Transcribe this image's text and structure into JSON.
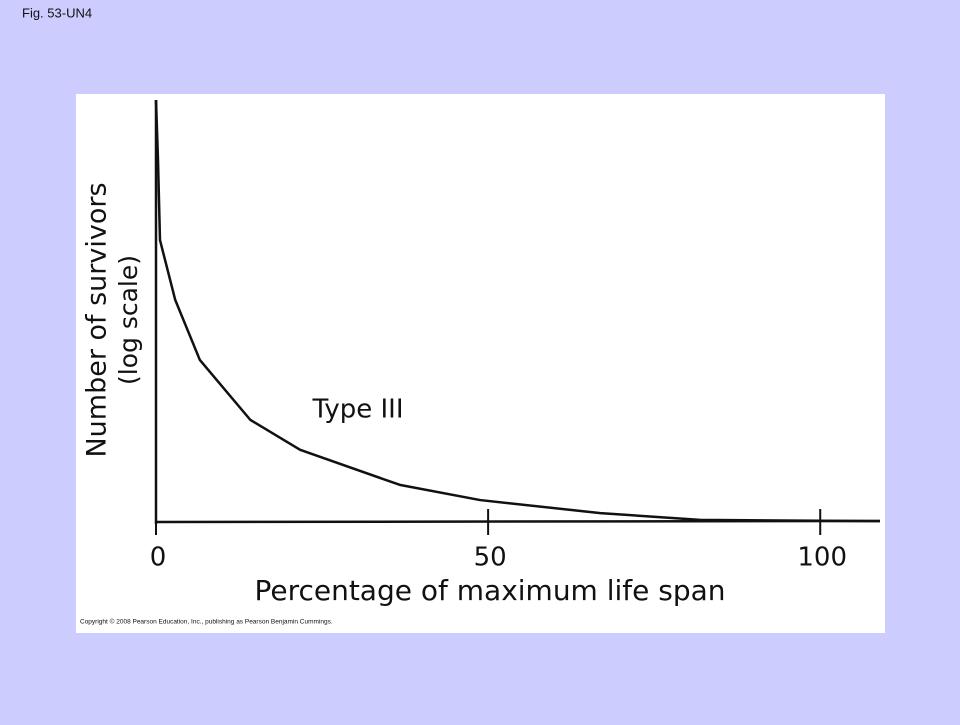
{
  "chart_data": {
    "type": "line",
    "title": "Fig. 53-UN4",
    "xlabel": "Percentage of maximum life span",
    "ylabel": "Number of survivors",
    "ylabel_note": "(log scale)",
    "annotation": "Type III",
    "source": "Copyright © 2008 Pearson Education, Inc., publishing as Pearson Benjamin Cummings.",
    "x": [
      0,
      0.3,
      0.6,
      2.9,
      6.6,
      14.2,
      21.7,
      36.7,
      48.8,
      66.9,
      81.9,
      109
    ],
    "series": [
      {
        "name": "Type III",
        "color": "#111111",
        "values": [
          100,
          85.8,
          66.8,
          52.6,
          38.4,
          24.2,
          17.1,
          8.8,
          5.2,
          2.1,
          0.5,
          0.2
        ]
      }
    ],
    "xlim": [
      0,
      109
    ],
    "ylim": [
      0,
      100
    ],
    "xticks": [
      0,
      50,
      100
    ],
    "grid": false
  }
}
